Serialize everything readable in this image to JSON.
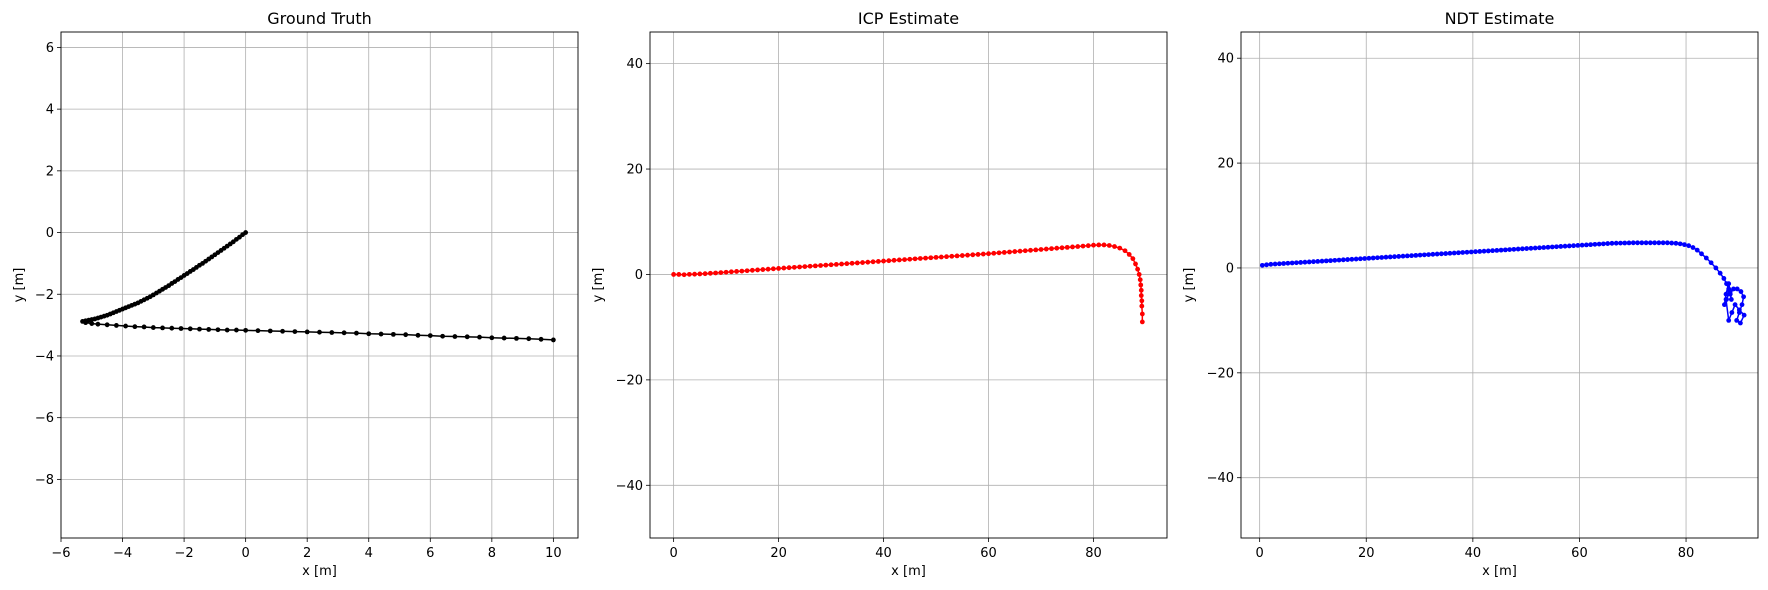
{
  "chart_data": [
    {
      "type": "line",
      "title": "Ground Truth",
      "xlabel": "x [m]",
      "ylabel": "y [m]",
      "xlim": [
        -6,
        10.8
      ],
      "ylim": [
        -9.9,
        6.5
      ],
      "xticks": [
        -6,
        -4,
        -2,
        0,
        2,
        4,
        6,
        8,
        10
      ],
      "yticks": [
        -8,
        -6,
        -4,
        -2,
        0,
        2,
        4,
        6
      ],
      "grid": true,
      "color": "#000000",
      "marker": "dot",
      "series": [
        {
          "x": [
            0.0,
            -0.1,
            -0.2,
            -0.3,
            -0.4,
            -0.5,
            -0.6,
            -0.7,
            -0.8,
            -0.9,
            -1.0,
            -1.1,
            -1.2,
            -1.3,
            -1.4,
            -1.5,
            -1.6,
            -1.7,
            -1.8,
            -1.9,
            -2.0,
            -2.1,
            -2.2,
            -2.3,
            -2.4,
            -2.5,
            -2.6,
            -2.7,
            -2.8,
            -2.9,
            -3.0,
            -3.1,
            -3.2,
            -3.3,
            -3.4,
            -3.5,
            -3.6,
            -3.7,
            -3.8,
            -3.9,
            -4.0,
            -4.1,
            -4.2,
            -4.3,
            -4.4,
            -4.5,
            -4.6,
            -4.7,
            -4.8,
            -4.9,
            -5.0,
            -5.1,
            -5.2,
            -5.3,
            -5.2,
            -5.0,
            -4.8,
            -4.5,
            -4.2,
            -3.9,
            -3.6,
            -3.3,
            -3.0,
            -2.7,
            -2.4,
            -2.1,
            -1.8,
            -1.5,
            -1.2,
            -0.9,
            -0.6,
            -0.3,
            0.0,
            0.4,
            0.8,
            1.2,
            1.6,
            2.0,
            2.4,
            2.8,
            3.2,
            3.6,
            4.0,
            4.4,
            4.8,
            5.2,
            5.6,
            6.0,
            6.4,
            6.8,
            7.2,
            7.6,
            8.0,
            8.4,
            8.8,
            9.2,
            9.6,
            10.0
          ],
          "y": [
            0.0,
            -0.07,
            -0.15,
            -0.22,
            -0.3,
            -0.37,
            -0.44,
            -0.51,
            -0.58,
            -0.65,
            -0.72,
            -0.79,
            -0.86,
            -0.93,
            -1.0,
            -1.06,
            -1.13,
            -1.2,
            -1.26,
            -1.33,
            -1.39,
            -1.46,
            -1.52,
            -1.59,
            -1.65,
            -1.72,
            -1.78,
            -1.84,
            -1.9,
            -1.96,
            -2.02,
            -2.08,
            -2.13,
            -2.18,
            -2.23,
            -2.28,
            -2.32,
            -2.36,
            -2.4,
            -2.44,
            -2.48,
            -2.52,
            -2.56,
            -2.6,
            -2.64,
            -2.68,
            -2.71,
            -2.74,
            -2.77,
            -2.8,
            -2.82,
            -2.84,
            -2.86,
            -2.88,
            -2.92,
            -2.95,
            -2.97,
            -2.99,
            -3.01,
            -3.03,
            -3.05,
            -3.06,
            -3.08,
            -3.09,
            -3.1,
            -3.11,
            -3.12,
            -3.13,
            -3.14,
            -3.15,
            -3.16,
            -3.16,
            -3.17,
            -3.18,
            -3.19,
            -3.2,
            -3.21,
            -3.22,
            -3.23,
            -3.24,
            -3.25,
            -3.26,
            -3.28,
            -3.29,
            -3.3,
            -3.31,
            -3.33,
            -3.34,
            -3.36,
            -3.37,
            -3.38,
            -3.39,
            -3.41,
            -3.42,
            -3.43,
            -3.44,
            -3.46,
            -3.48
          ]
        }
      ]
    },
    {
      "type": "line",
      "title": "ICP Estimate",
      "xlabel": "x [m]",
      "ylabel": "y [m]",
      "xlim": [
        -4.5,
        94
      ],
      "ylim": [
        -50,
        46
      ],
      "xticks": [
        0,
        20,
        40,
        60,
        80
      ],
      "yticks": [
        -40,
        -20,
        0,
        20,
        40
      ],
      "grid": true,
      "color": "#ff0000",
      "marker": "dot",
      "series": [
        {
          "x": [
            0.0,
            1.0,
            2.0,
            3.0,
            4.0,
            5.0,
            6.0,
            7.0,
            8.0,
            9.0,
            10.0,
            11.0,
            12.0,
            13.0,
            14.0,
            15.0,
            16.0,
            17.0,
            18.0,
            19.0,
            20.0,
            21.0,
            22.0,
            23.0,
            24.0,
            25.0,
            26.0,
            27.0,
            28.0,
            29.0,
            30.0,
            31.0,
            32.0,
            33.0,
            34.0,
            35.0,
            36.0,
            37.0,
            38.0,
            39.0,
            40.0,
            41.0,
            42.0,
            43.0,
            44.0,
            45.0,
            46.0,
            47.0,
            48.0,
            49.0,
            50.0,
            51.0,
            52.0,
            53.0,
            54.0,
            55.0,
            56.0,
            57.0,
            58.0,
            59.0,
            60.0,
            61.0,
            62.0,
            63.0,
            64.0,
            65.0,
            66.0,
            67.0,
            68.0,
            69.0,
            70.0,
            71.0,
            72.0,
            73.0,
            74.0,
            75.0,
            76.0,
            77.0,
            78.0,
            79.0,
            80.0,
            81.0,
            82.0,
            83.0,
            84.0,
            85.0,
            86.0,
            86.8,
            87.5,
            88.0,
            88.4,
            88.7,
            88.9,
            89.0,
            89.1,
            89.1,
            89.2,
            89.2,
            89.3,
            89.3
          ],
          "y": [
            0.0,
            0.0,
            -0.05,
            0.02,
            0.05,
            0.1,
            0.15,
            0.22,
            0.28,
            0.35,
            0.42,
            0.5,
            0.57,
            0.64,
            0.71,
            0.79,
            0.86,
            0.93,
            1.0,
            1.07,
            1.14,
            1.21,
            1.28,
            1.35,
            1.42,
            1.49,
            1.56,
            1.63,
            1.7,
            1.77,
            1.84,
            1.91,
            1.98,
            2.05,
            2.12,
            2.19,
            2.26,
            2.33,
            2.4,
            2.47,
            2.54,
            2.61,
            2.68,
            2.75,
            2.82,
            2.89,
            2.96,
            3.03,
            3.1,
            3.17,
            3.24,
            3.31,
            3.38,
            3.45,
            3.52,
            3.59,
            3.66,
            3.73,
            3.8,
            3.87,
            3.94,
            4.02,
            4.1,
            4.18,
            4.26,
            4.34,
            4.42,
            4.5,
            4.58,
            4.66,
            4.74,
            4.82,
            4.9,
            4.98,
            5.06,
            5.14,
            5.22,
            5.3,
            5.38,
            5.46,
            5.55,
            5.6,
            5.6,
            5.5,
            5.3,
            5.0,
            4.5,
            3.8,
            3.0,
            2.0,
            1.0,
            0.0,
            -1.0,
            -2.0,
            -3.0,
            -4.0,
            -5.0,
            -6.0,
            -7.5,
            -9.0
          ]
        }
      ]
    },
    {
      "type": "line",
      "title": "NDT Estimate",
      "xlabel": "x [m]",
      "ylabel": "y [m]",
      "xlim": [
        -3.5,
        93.5
      ],
      "ylim": [
        -51.5,
        45
      ],
      "xticks": [
        0,
        20,
        40,
        60,
        80
      ],
      "yticks": [
        -40,
        -20,
        0,
        20,
        40
      ],
      "grid": true,
      "color": "#0000ff",
      "marker": "dot",
      "series": [
        {
          "x": [
            0.5,
            1.3,
            2.1,
            2.9,
            3.7,
            4.5,
            5.3,
            6.1,
            6.9,
            7.7,
            8.5,
            9.3,
            10.1,
            10.9,
            11.7,
            12.5,
            13.3,
            14.1,
            14.9,
            15.7,
            16.5,
            17.3,
            18.1,
            18.9,
            19.7,
            20.5,
            21.3,
            22.1,
            22.9,
            23.7,
            24.5,
            25.3,
            26.1,
            26.9,
            27.7,
            28.5,
            29.3,
            30.1,
            30.9,
            31.7,
            32.5,
            33.3,
            34.1,
            34.9,
            35.7,
            36.5,
            37.3,
            38.1,
            38.9,
            39.7,
            40.5,
            41.3,
            42.1,
            42.9,
            43.7,
            44.5,
            45.3,
            46.1,
            46.9,
            47.7,
            48.5,
            49.3,
            50.1,
            50.9,
            51.7,
            52.5,
            53.3,
            54.1,
            54.9,
            55.7,
            56.5,
            57.3,
            58.1,
            58.9,
            59.7,
            60.5,
            61.3,
            62.1,
            62.9,
            63.7,
            64.5,
            65.3,
            66.1,
            66.9,
            67.7,
            68.5,
            69.3,
            70.1,
            70.9,
            71.7,
            72.5,
            73.3,
            74.1,
            74.9,
            75.7,
            76.5,
            77.3,
            78.1,
            78.9,
            79.7,
            80.5,
            81.3,
            82.1,
            82.9,
            83.8,
            84.7,
            85.6,
            86.4,
            87.1,
            87.6,
            88.0,
            88.3,
            88.5,
            88.3,
            88.0,
            87.5,
            87.2,
            87.6,
            88.2,
            88.9,
            89.6,
            90.3,
            90.8,
            90.5,
            90.0,
            89.5,
            90.2,
            90.9,
            90.0,
            89.2,
            88.6,
            88.0,
            87.5
          ],
          "y": [
            0.5,
            0.6,
            0.7,
            0.75,
            0.8,
            0.85,
            0.9,
            0.95,
            1.0,
            1.05,
            1.1,
            1.15,
            1.2,
            1.25,
            1.3,
            1.35,
            1.4,
            1.45,
            1.5,
            1.55,
            1.6,
            1.65,
            1.7,
            1.75,
            1.8,
            1.85,
            1.9,
            1.95,
            2.0,
            2.05,
            2.1,
            2.15,
            2.2,
            2.25,
            2.3,
            2.35,
            2.4,
            2.45,
            2.5,
            2.55,
            2.6,
            2.65,
            2.7,
            2.75,
            2.8,
            2.85,
            2.9,
            2.95,
            3.0,
            3.05,
            3.1,
            3.15,
            3.2,
            3.25,
            3.3,
            3.35,
            3.4,
            3.45,
            3.5,
            3.55,
            3.6,
            3.65,
            3.7,
            3.75,
            3.8,
            3.85,
            3.9,
            3.95,
            4.0,
            4.05,
            4.1,
            4.15,
            4.2,
            4.25,
            4.3,
            4.35,
            4.4,
            4.45,
            4.5,
            4.55,
            4.6,
            4.65,
            4.7,
            4.72,
            4.74,
            4.76,
            4.78,
            4.8,
            4.8,
            4.8,
            4.8,
            4.8,
            4.8,
            4.8,
            4.8,
            4.8,
            4.75,
            4.7,
            4.6,
            4.45,
            4.25,
            3.9,
            3.4,
            2.7,
            1.9,
            1.0,
            0.0,
            -1.0,
            -2.0,
            -3.0,
            -4.0,
            -5.0,
            -6.0,
            -4.5,
            -3.0,
            -5.0,
            -7.0,
            -6.0,
            -4.5,
            -4.0,
            -4.0,
            -4.5,
            -5.5,
            -7.0,
            -8.5,
            -10.0,
            -10.5,
            -9.0,
            -8.0,
            -7.0,
            -8.5,
            -10.0,
            -6.0
          ]
        }
      ]
    }
  ]
}
